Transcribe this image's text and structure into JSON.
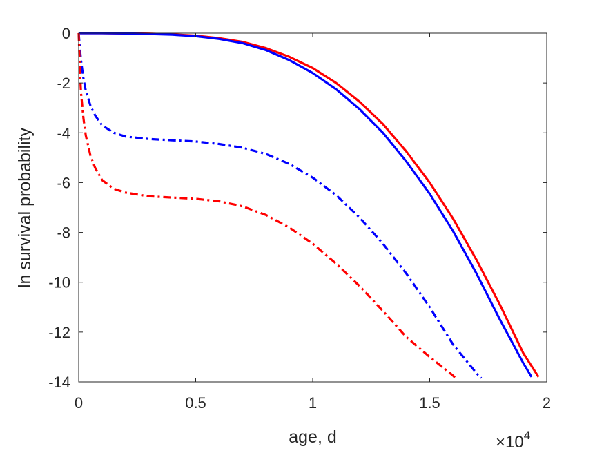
{
  "chart_data": {
    "type": "line",
    "xlabel": "age, d",
    "ylabel": "ln survival probability",
    "x_exponent_label": {
      "base": "×10",
      "power": "4"
    },
    "xlim": [
      0,
      20000
    ],
    "ylim": [
      -14,
      0
    ],
    "x_ticks": [
      0,
      5000,
      10000,
      15000,
      20000
    ],
    "x_tick_labels": [
      "0",
      "0.5",
      "1",
      "1.5",
      "2"
    ],
    "y_ticks": [
      0,
      -2,
      -4,
      -6,
      -8,
      -10,
      -12,
      -14
    ],
    "y_tick_labels": [
      "0",
      "-2",
      "-4",
      "-6",
      "-8",
      "-10",
      "-12",
      "-14"
    ],
    "grid": false,
    "series": [
      {
        "color": "#ff0000",
        "style": "solid",
        "x": [
          0,
          1000,
          2000,
          3000,
          4000,
          5000,
          6000,
          7000,
          8000,
          9000,
          10000,
          11000,
          12000,
          13000,
          14000,
          15000,
          16000,
          17000,
          18000,
          19000,
          19650
        ],
        "y": [
          0,
          0,
          -0.01,
          -0.02,
          -0.05,
          -0.1,
          -0.2,
          -0.35,
          -0.6,
          -0.95,
          -1.4,
          -2.0,
          -2.75,
          -3.65,
          -4.75,
          -6.0,
          -7.45,
          -9.1,
          -10.9,
          -12.85,
          -13.8
        ]
      },
      {
        "color": "#0000ff",
        "style": "solid",
        "x": [
          0,
          1000,
          2000,
          3000,
          4000,
          5000,
          6000,
          7000,
          8000,
          9000,
          10000,
          11000,
          12000,
          13000,
          14000,
          15000,
          16000,
          17000,
          18000,
          19000,
          19350
        ],
        "y": [
          0,
          0,
          -0.01,
          -0.03,
          -0.06,
          -0.12,
          -0.23,
          -0.4,
          -0.68,
          -1.08,
          -1.6,
          -2.25,
          -3.05,
          -4.0,
          -5.15,
          -6.45,
          -7.95,
          -9.65,
          -11.5,
          -13.25,
          -13.8
        ]
      },
      {
        "color": "#0000ff",
        "style": "dashdot",
        "x": [
          0,
          50,
          100,
          200,
          300,
          500,
          700,
          1000,
          1500,
          2000,
          3000,
          4000,
          5000,
          6000,
          7000,
          8000,
          9000,
          10000,
          11000,
          12000,
          13000,
          14000,
          15000,
          16000,
          17000,
          17200
        ],
        "y": [
          0,
          -0.6,
          -1.1,
          -1.8,
          -2.3,
          -2.9,
          -3.3,
          -3.7,
          -4.0,
          -4.15,
          -4.25,
          -4.3,
          -4.35,
          -4.45,
          -4.6,
          -4.85,
          -5.25,
          -5.8,
          -6.5,
          -7.4,
          -8.45,
          -9.65,
          -11.0,
          -12.5,
          -13.65,
          -13.85
        ]
      },
      {
        "color": "#ff0000",
        "style": "dashdot",
        "x": [
          0,
          50,
          100,
          200,
          300,
          500,
          700,
          1000,
          1500,
          2000,
          3000,
          4000,
          5000,
          6000,
          7000,
          8000,
          9000,
          10000,
          11000,
          12000,
          13000,
          14000,
          15000,
          16000,
          16100
        ],
        "y": [
          0,
          -1.5,
          -2.4,
          -3.4,
          -4.1,
          -4.9,
          -5.4,
          -5.9,
          -6.25,
          -6.4,
          -6.55,
          -6.6,
          -6.65,
          -6.75,
          -6.95,
          -7.3,
          -7.8,
          -8.45,
          -9.25,
          -10.15,
          -11.15,
          -12.2,
          -13.0,
          -13.75,
          -13.85
        ]
      }
    ]
  }
}
